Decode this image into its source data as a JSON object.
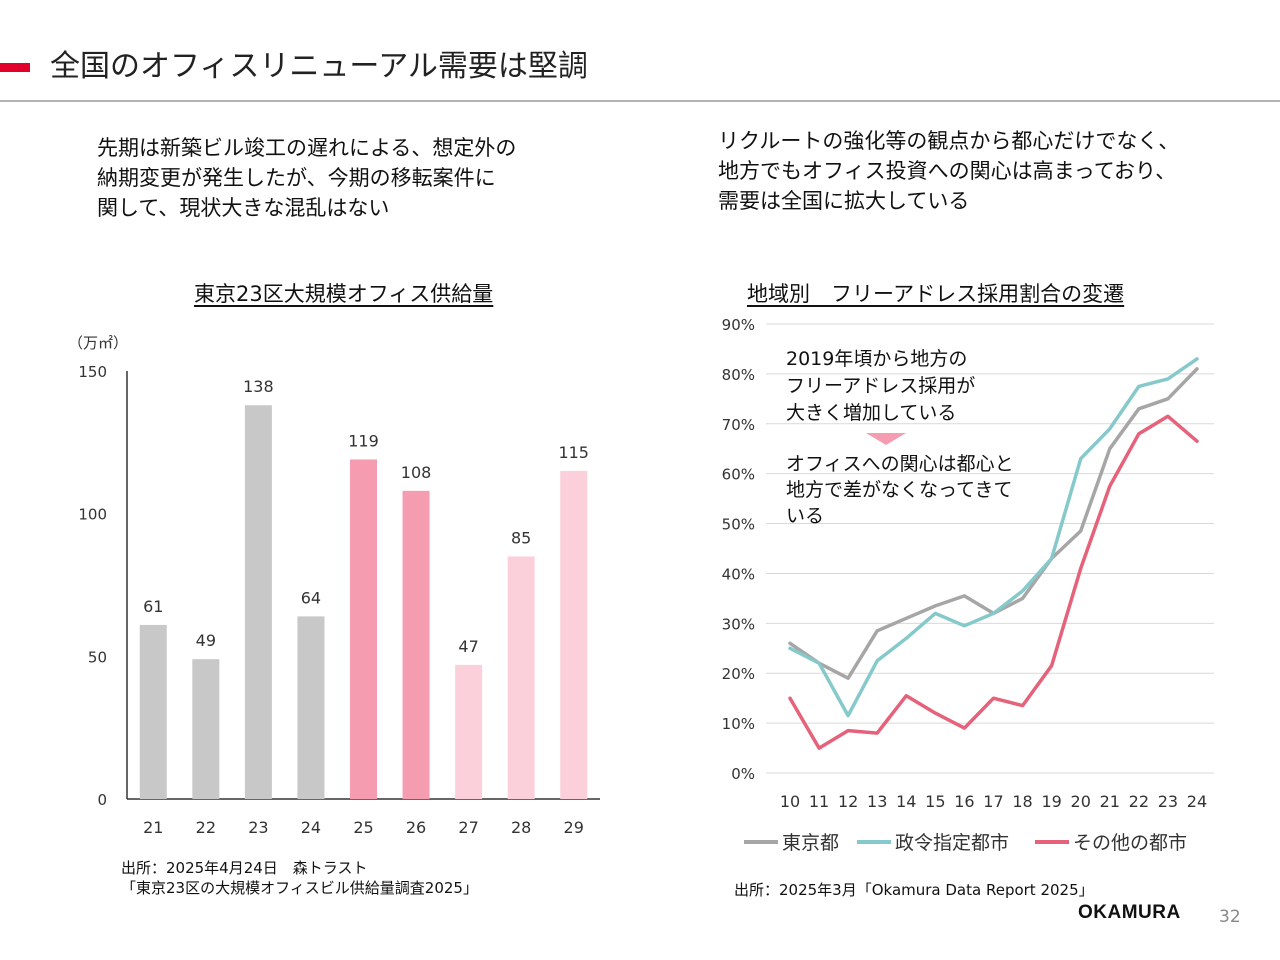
{
  "slide": {
    "title": "全国のオフィスリニューアル需要は堅調",
    "page_number": "32",
    "logo": "OKAMURA"
  },
  "lead_left": [
    "先期は新築ビル竣工の遅れによる、想定外の",
    "納期変更が発生したが、今期の移転案件に",
    "関して、現状大きな混乱はない"
  ],
  "lead_right": [
    "リクルートの強化等の観点から都心だけでなく、",
    "地方でもオフィス投資への関心は高まっており、",
    "需要は全国に拡大している"
  ],
  "source_left": [
    "出所：2025年4月24日　森トラスト",
    "「東京23区の大規模オフィスビル供給量調査2025」"
  ],
  "source_right": "出所：2025年3月「Okamura Data Report 2025」",
  "chart_data": [
    {
      "type": "bar",
      "title": "東京23区大規模オフィス供給量",
      "ylabel": "（万㎡）",
      "categories": [
        "21",
        "22",
        "23",
        "24",
        "25",
        "26",
        "27",
        "28",
        "29"
      ],
      "values": [
        61,
        49,
        138,
        64,
        119,
        108,
        47,
        85,
        115
      ],
      "colors": [
        "#c8c8c8",
        "#c8c8c8",
        "#c8c8c8",
        "#c8c8c8",
        "#f59cb0",
        "#f59cb0",
        "#fbd0da",
        "#fbd0da",
        "#fbd0da"
      ],
      "ylim": [
        0,
        150
      ],
      "yticks": [
        "0",
        "50",
        "100",
        "150"
      ],
      "grid": false,
      "legend": "none"
    },
    {
      "type": "line",
      "title": "地域別　フリーアドレス採用割合の変遷",
      "x": [
        "10",
        "11",
        "12",
        "13",
        "14",
        "15",
        "16",
        "17",
        "18",
        "19",
        "20",
        "21",
        "22",
        "23",
        "24"
      ],
      "ylim": [
        0,
        90
      ],
      "yticks": [
        "0%",
        "10%",
        "20%",
        "30%",
        "40%",
        "50%",
        "60%",
        "70%",
        "80%",
        "90%"
      ],
      "grid": true,
      "legend": "bottom",
      "series": [
        {
          "name": "東京都",
          "color": "#a6a6a6",
          "values": [
            26,
            22,
            19,
            28.5,
            31,
            33.5,
            35.5,
            32,
            35,
            43,
            48.5,
            65,
            73,
            75,
            81
          ]
        },
        {
          "name": "政令指定都市",
          "color": "#86c9cb",
          "values": [
            25,
            22,
            11.5,
            22.5,
            27,
            32,
            29.5,
            32,
            36.5,
            43,
            63,
            69,
            77.5,
            79,
            83
          ]
        },
        {
          "name": "その他の都市",
          "color": "#e5627a",
          "values": [
            15,
            5,
            8.5,
            8,
            15.5,
            12,
            9,
            15,
            13.5,
            21.5,
            41,
            57.5,
            68,
            71.5,
            66.5
          ]
        }
      ],
      "annotations": [
        [
          "2019年頃から地方の",
          "フリーアドレス採用が",
          "大きく増加している"
        ],
        [
          "オフィスへの関心は都心と",
          "地方で差がなくなってきて",
          "いる"
        ]
      ],
      "annotation_arrow_color": "#f59cb0"
    }
  ]
}
